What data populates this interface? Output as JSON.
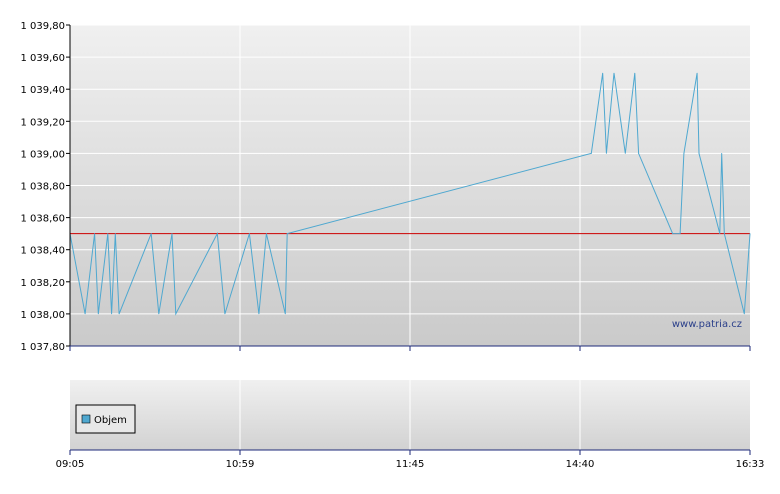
{
  "chart_data": [
    {
      "type": "line",
      "title": "",
      "xlabel": "",
      "ylabel": "",
      "ylim": [
        1037.8,
        1039.8
      ],
      "y_ticks": [
        "1 037,80",
        "1 038,00",
        "1 038,20",
        "1 038,40",
        "1 038,60",
        "1 038,80",
        "1 039,00",
        "1 039,20",
        "1 039,40",
        "1 039,60",
        "1 039,80"
      ],
      "x_ticks": [
        "09:05",
        "10:59",
        "11:45",
        "14:40",
        "16:33"
      ],
      "grid": true,
      "reference_line": {
        "value": 1038.5,
        "color": "#cc0000"
      },
      "watermark": "www.patria.cz",
      "series_color": "#4fa8d0",
      "series": [
        {
          "points": [
            [
              0.0,
              1038.5
            ],
            [
              0.0,
              1038.5
            ],
            [
              0.4,
              1038.0
            ],
            [
              0.65,
              1038.5
            ],
            [
              0.75,
              1038.0
            ],
            [
              1.0,
              1038.5
            ],
            [
              1.1,
              1038.0
            ],
            [
              1.2,
              1038.5
            ],
            [
              1.3,
              1038.0
            ],
            [
              2.15,
              1038.5
            ],
            [
              2.35,
              1038.0
            ],
            [
              2.7,
              1038.5
            ],
            [
              2.8,
              1038.0
            ],
            [
              3.9,
              1038.5
            ],
            [
              4.1,
              1038.0
            ],
            [
              4.75,
              1038.5
            ],
            [
              5.0,
              1038.0
            ],
            [
              5.2,
              1038.5
            ],
            [
              5.7,
              1038.0
            ],
            [
              5.75,
              1038.5
            ],
            [
              13.8,
              1039.0
            ],
            [
              14.1,
              1039.5
            ],
            [
              14.2,
              1039.0
            ],
            [
              14.4,
              1039.5
            ],
            [
              14.7,
              1039.0
            ],
            [
              14.95,
              1039.5
            ],
            [
              15.05,
              1039.0
            ],
            [
              15.95,
              1038.5
            ],
            [
              16.15,
              1038.5
            ],
            [
              16.25,
              1039.0
            ],
            [
              16.6,
              1039.5
            ],
            [
              16.65,
              1039.0
            ],
            [
              17.2,
              1038.5
            ],
            [
              17.25,
              1039.0
            ],
            [
              17.32,
              1038.5
            ],
            [
              17.85,
              1038.0
            ],
            [
              18.0,
              1038.5
            ]
          ]
        }
      ]
    },
    {
      "type": "bar",
      "legend": [
        "Objem"
      ],
      "legend_color": "#4fa8d0",
      "x_ticks": [
        "09:05",
        "10:59",
        "11:45",
        "14:40",
        "16:33"
      ],
      "series": [
        {
          "name": "Objem",
          "values": []
        }
      ]
    }
  ]
}
